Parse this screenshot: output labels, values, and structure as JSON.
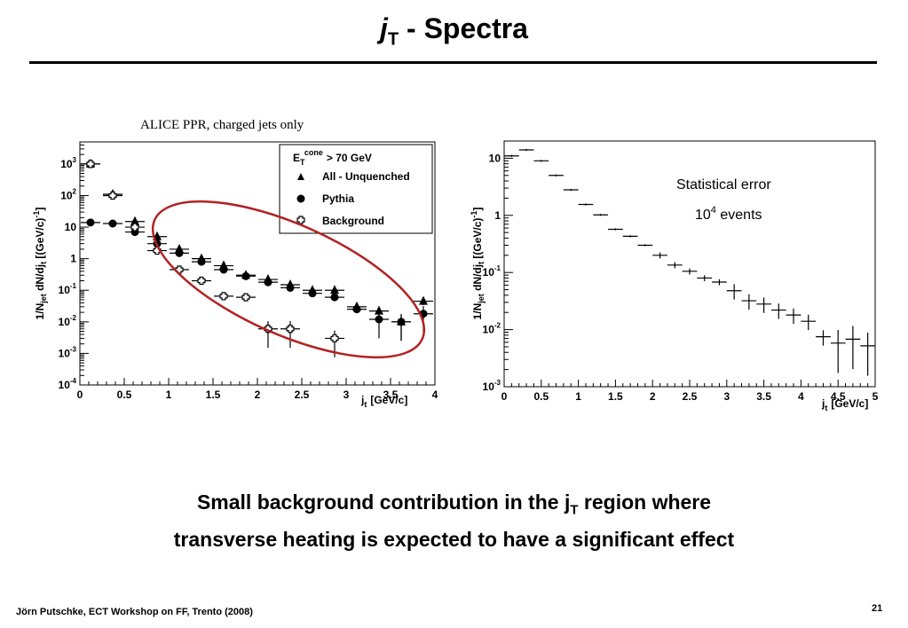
{
  "slide": {
    "title_j": "j",
    "title_sub": "T",
    "title_rest": " - Spectra",
    "caption": "ALICE PPR, charged jets only",
    "message_line1_a": "Small background contribution in the j",
    "message_line1_sub": "T",
    "message_line1_b": " region where",
    "message_line2": "transverse heating is expected to have a significant effect",
    "footer": "Jörn Putschke, ECT Workshop on FF, Trento (2008)",
    "page_number": "21"
  },
  "colors": {
    "ellipse": "#b22222",
    "axes": "#000000"
  },
  "chart_data": [
    {
      "type": "scatter",
      "yscale": "log",
      "xlim": [
        0,
        4
      ],
      "ylim": [
        0.0001,
        5000
      ],
      "xticks": [
        "0",
        "0.5",
        "1",
        "1.5",
        "2",
        "2.5",
        "3",
        "3.5",
        "4"
      ],
      "yticks": [
        "10^-4",
        "10^-3",
        "10^-2",
        "10^-1",
        "1",
        "10",
        "10^2",
        "10^3"
      ],
      "xlabel": "j_t [GeV/c]",
      "ylabel": "1/N_jet dN/dj_t [(GeV/c)^-1]",
      "legend_header": "E_T^cone > 70 GeV",
      "legend_position": "top-right",
      "series": [
        {
          "name": "All - Unquenched",
          "marker": "triangle",
          "x": [
            0.12,
            0.37,
            0.62,
            0.87,
            1.12,
            1.37,
            1.62,
            1.87,
            2.12,
            2.37,
            2.62,
            2.87,
            3.12,
            3.37,
            3.62,
            3.87
          ],
          "y": [
            1000,
            110,
            15,
            5,
            2,
            1,
            0.6,
            0.3,
            0.22,
            0.15,
            0.1,
            0.1,
            0.03,
            0.022,
            0.01,
            0.045
          ]
        },
        {
          "name": "Pythia",
          "marker": "circle",
          "x": [
            0.12,
            0.37,
            0.62,
            0.87,
            1.12,
            1.37,
            1.62,
            1.87,
            2.12,
            2.37,
            2.62,
            2.87,
            3.12,
            3.37,
            3.62,
            3.87
          ],
          "y": [
            14,
            13,
            7,
            3,
            1.5,
            0.8,
            0.45,
            0.28,
            0.18,
            0.12,
            0.08,
            0.06,
            0.025,
            0.012,
            0.01,
            0.018
          ]
        },
        {
          "name": "Background",
          "marker": "open-cross",
          "x": [
            0.12,
            0.37,
            0.62,
            0.87,
            1.12,
            1.37,
            1.62,
            1.87,
            2.12,
            2.37,
            2.87
          ],
          "y": [
            1000,
            100,
            10,
            1.8,
            0.45,
            0.2,
            0.065,
            0.06,
            0.006,
            0.006,
            0.003
          ]
        }
      ]
    },
    {
      "type": "scatter",
      "yscale": "log",
      "xlim": [
        0,
        5
      ],
      "ylim": [
        0.001,
        20
      ],
      "xticks": [
        "0",
        "0.5",
        "1",
        "1.5",
        "2",
        "2.5",
        "3",
        "3.5",
        "4",
        "4.5",
        "5"
      ],
      "yticks": [
        "10^-3",
        "10^-2",
        "10^-1",
        "1",
        "10"
      ],
      "xlabel": "j_t [GeV/c]",
      "ylabel": "1/N_jet dN/dj_t [(GeV/c)^-1]",
      "annotation_1": "Statistical error",
      "annotation_2_base": "10",
      "annotation_2_exp": "4",
      "annotation_2_rest": " events",
      "series": [
        {
          "marker": "cross",
          "x": [
            0.1,
            0.3,
            0.5,
            0.7,
            0.9,
            1.1,
            1.3,
            1.5,
            1.7,
            1.9,
            2.1,
            2.3,
            2.5,
            2.7,
            2.9,
            3.1,
            3.3,
            3.5,
            3.7,
            3.9,
            4.1,
            4.3,
            4.5,
            4.7,
            4.9
          ],
          "y": [
            11,
            14,
            9,
            5,
            2.8,
            1.55,
            1.02,
            0.57,
            0.43,
            0.3,
            0.2,
            0.135,
            0.105,
            0.08,
            0.068,
            0.048,
            0.032,
            0.028,
            0.022,
            0.018,
            0.014,
            0.0075,
            0.0058,
            0.0068,
            0.0052
          ]
        }
      ]
    }
  ]
}
